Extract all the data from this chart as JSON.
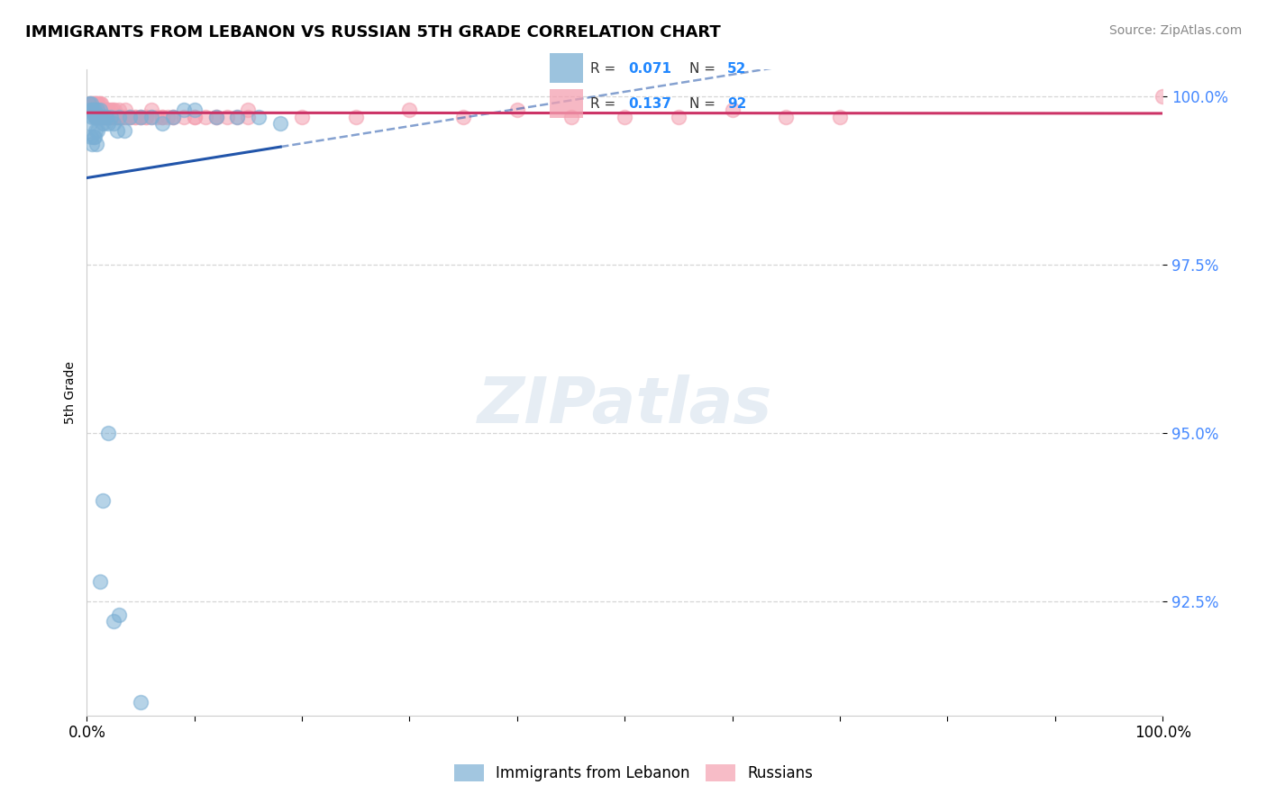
{
  "title": "IMMIGRANTS FROM LEBANON VS RUSSIAN 5TH GRADE CORRELATION CHART",
  "source_text": "Source: ZipAtlas.com",
  "ylabel": "5th Grade",
  "legend_label_blue": "Immigrants from Lebanon",
  "legend_label_pink": "Russians",
  "R_blue": 0.071,
  "N_blue": 52,
  "R_pink": 0.137,
  "N_pink": 92,
  "x_min": 0.0,
  "x_max": 1.0,
  "y_min": 0.908,
  "y_max": 1.004,
  "y_ticks": [
    0.925,
    0.95,
    0.975,
    1.0
  ],
  "y_tick_labels": [
    "92.5%",
    "95.0%",
    "97.5%",
    "100.0%"
  ],
  "color_blue": "#7BAFD4",
  "color_pink": "#F4A0B0",
  "line_color_blue": "#2255AA",
  "line_color_pink": "#CC3366",
  "background_color": "#FFFFFF",
  "blue_x": [
    0.002,
    0.003,
    0.004,
    0.005,
    0.005,
    0.006,
    0.007,
    0.007,
    0.008,
    0.009,
    0.01,
    0.01,
    0.011,
    0.012,
    0.012,
    0.013,
    0.014,
    0.015,
    0.016,
    0.017,
    0.018,
    0.02,
    0.022,
    0.025,
    0.028,
    0.03,
    0.035,
    0.04,
    0.05,
    0.06,
    0.07,
    0.08,
    0.09,
    0.1,
    0.12,
    0.14,
    0.16,
    0.18,
    0.003,
    0.004,
    0.005,
    0.006,
    0.007,
    0.008,
    0.009,
    0.01,
    0.012,
    0.015,
    0.02,
    0.025,
    0.03,
    0.05
  ],
  "blue_y": [
    0.999,
    0.998,
    0.999,
    0.998,
    0.997,
    0.998,
    0.997,
    0.998,
    0.997,
    0.997,
    0.998,
    0.997,
    0.997,
    0.998,
    0.997,
    0.997,
    0.996,
    0.997,
    0.996,
    0.997,
    0.997,
    0.996,
    0.997,
    0.996,
    0.995,
    0.997,
    0.995,
    0.997,
    0.997,
    0.997,
    0.996,
    0.997,
    0.998,
    0.998,
    0.997,
    0.997,
    0.997,
    0.996,
    0.996,
    0.994,
    0.993,
    0.994,
    0.994,
    0.995,
    0.993,
    0.995,
    0.928,
    0.94,
    0.95,
    0.922,
    0.923,
    0.91
  ],
  "pink_x": [
    0.003,
    0.004,
    0.005,
    0.005,
    0.006,
    0.006,
    0.007,
    0.007,
    0.008,
    0.008,
    0.009,
    0.009,
    0.01,
    0.01,
    0.011,
    0.011,
    0.012,
    0.012,
    0.013,
    0.013,
    0.014,
    0.015,
    0.016,
    0.017,
    0.018,
    0.019,
    0.02,
    0.022,
    0.024,
    0.026,
    0.028,
    0.03,
    0.033,
    0.036,
    0.04,
    0.045,
    0.05,
    0.055,
    0.06,
    0.065,
    0.07,
    0.075,
    0.08,
    0.09,
    0.1,
    0.11,
    0.12,
    0.13,
    0.14,
    0.15,
    0.004,
    0.005,
    0.006,
    0.007,
    0.008,
    0.009,
    0.01,
    0.011,
    0.012,
    0.013,
    0.014,
    0.015,
    0.016,
    0.018,
    0.02,
    0.022,
    0.025,
    0.028,
    0.032,
    0.036,
    0.04,
    0.045,
    0.05,
    0.055,
    0.06,
    0.07,
    0.08,
    0.1,
    0.12,
    0.15,
    0.2,
    0.25,
    0.3,
    0.35,
    0.4,
    0.45,
    0.5,
    0.55,
    0.6,
    0.65,
    0.7,
    1.0
  ],
  "pink_y": [
    0.999,
    0.999,
    0.999,
    0.998,
    0.999,
    0.998,
    0.999,
    0.998,
    0.999,
    0.998,
    0.999,
    0.998,
    0.998,
    0.999,
    0.998,
    0.999,
    0.998,
    0.999,
    0.998,
    0.999,
    0.998,
    0.998,
    0.998,
    0.998,
    0.998,
    0.998,
    0.998,
    0.998,
    0.998,
    0.998,
    0.997,
    0.998,
    0.997,
    0.998,
    0.997,
    0.997,
    0.997,
    0.997,
    0.998,
    0.997,
    0.997,
    0.997,
    0.997,
    0.997,
    0.997,
    0.997,
    0.997,
    0.997,
    0.997,
    0.997,
    0.998,
    0.998,
    0.998,
    0.998,
    0.997,
    0.997,
    0.997,
    0.997,
    0.997,
    0.997,
    0.997,
    0.997,
    0.997,
    0.997,
    0.997,
    0.997,
    0.997,
    0.997,
    0.997,
    0.997,
    0.997,
    0.997,
    0.997,
    0.997,
    0.997,
    0.997,
    0.997,
    0.997,
    0.997,
    0.998,
    0.997,
    0.997,
    0.998,
    0.997,
    0.998,
    0.997,
    0.997,
    0.997,
    0.998,
    0.997,
    0.997,
    1.0
  ]
}
